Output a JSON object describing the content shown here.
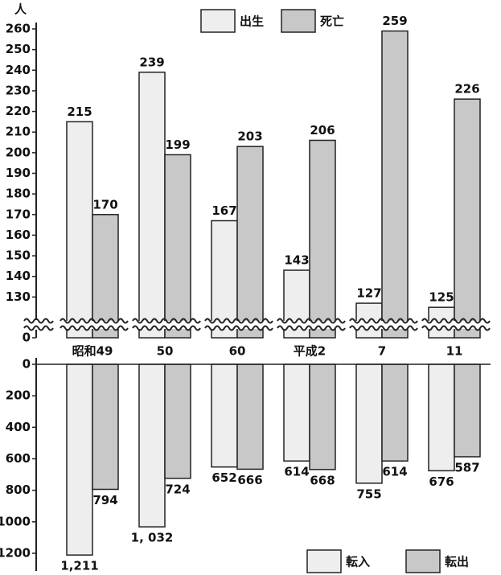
{
  "chart_data": [
    {
      "type": "bar",
      "y_label": "人",
      "categories": [
        "昭和49",
        "50",
        "60",
        "平成2",
        "7",
        "11"
      ],
      "series": [
        {
          "name": "出生",
          "color": "#eeeeee",
          "values": [
            215,
            239,
            167,
            143,
            127,
            125
          ]
        },
        {
          "name": "死亡",
          "color": "#c8c8c8",
          "values": [
            170,
            199,
            203,
            206,
            259,
            226
          ]
        }
      ],
      "ylim": [
        0,
        260
      ],
      "axis_break": [
        0,
        120
      ],
      "yticks": [
        0,
        130,
        140,
        150,
        160,
        170,
        180,
        190,
        200,
        210,
        220,
        230,
        240,
        250,
        260
      ]
    },
    {
      "type": "bar",
      "inverted": true,
      "series": [
        {
          "name": "転入",
          "color": "#eeeeee",
          "values": [
            1211,
            1032,
            652,
            614,
            755,
            676
          ],
          "value_labels": [
            "1,211",
            "1, 032",
            "652",
            "614",
            "755",
            "676"
          ]
        },
        {
          "name": "転出",
          "color": "#c8c8c8",
          "values": [
            794,
            724,
            666,
            668,
            614,
            587
          ]
        }
      ],
      "ylim": [
        0,
        1200
      ],
      "yticks": [
        0,
        200,
        400,
        600,
        800,
        1000,
        1200
      ]
    }
  ]
}
